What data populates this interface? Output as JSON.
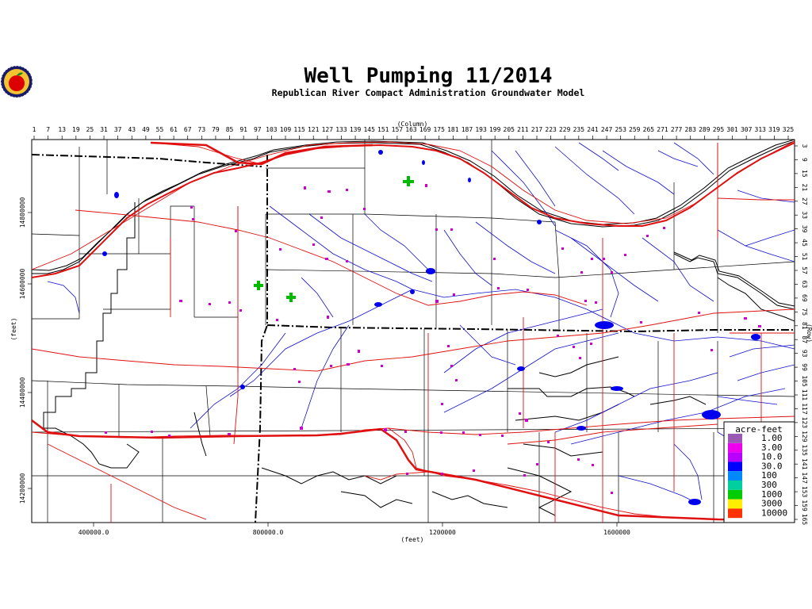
{
  "title": "Well Pumping 11/2014",
  "subtitle": "Republican River Compact Administration Groundwater Model",
  "axes": {
    "column_label": "(Column)",
    "row_label": "(Row)",
    "x_unit_label": "(feet)",
    "y_unit_label": "(feet)",
    "column_ticks": [
      "1",
      "7",
      "13",
      "19",
      "25",
      "31",
      "37",
      "43",
      "49",
      "55",
      "61",
      "67",
      "73",
      "79",
      "85",
      "91",
      "97",
      "103",
      "109",
      "115",
      "121",
      "127",
      "133",
      "139",
      "145",
      "151",
      "157",
      "163",
      "169",
      "175",
      "181",
      "187",
      "193",
      "199",
      "205",
      "211",
      "217",
      "223",
      "229",
      "235",
      "241",
      "247",
      "253",
      "259",
      "265",
      "271",
      "277",
      "283",
      "289",
      "295",
      "301",
      "307",
      "313",
      "319",
      "325"
    ],
    "row_ticks": [
      "3",
      "9",
      "15",
      "21",
      "27",
      "33",
      "39",
      "45",
      "51",
      "57",
      "63",
      "69",
      "75",
      "81",
      "87",
      "93",
      "99",
      "105",
      "111",
      "117",
      "123",
      "129",
      "135",
      "141",
      "147",
      "153",
      "159",
      "165"
    ],
    "x_feet_ticks": [
      "400000.0",
      "800000.0",
      "1200000",
      "1600000"
    ],
    "y_feet_ticks": [
      "14800000",
      "14600000",
      "14400000",
      "14200000"
    ]
  },
  "legend": {
    "title": "acre-feet",
    "entries": [
      {
        "label": "1.00",
        "color": "#9b59b6"
      },
      {
        "label": "3.00",
        "color": "#ee00ee"
      },
      {
        "label": "10.0",
        "color": "#b800ff"
      },
      {
        "label": "30.0",
        "color": "#0000ff"
      },
      {
        "label": "100",
        "color": "#0088ff"
      },
      {
        "label": "300",
        "color": "#00d0a0"
      },
      {
        "label": "1000",
        "color": "#00cc00"
      },
      {
        "label": "3000",
        "color": "#ffee00"
      },
      {
        "label": "10000",
        "color": "#ff3300"
      }
    ]
  },
  "colors": {
    "roads": "#e01010",
    "highways": "#e01010",
    "streams": "#0000cc",
    "boundaries": "#000000",
    "pumping_low": "#cc00cc",
    "pumping_mid": "#00bb00"
  },
  "logo": {
    "icon": "apple-seal-icon"
  }
}
